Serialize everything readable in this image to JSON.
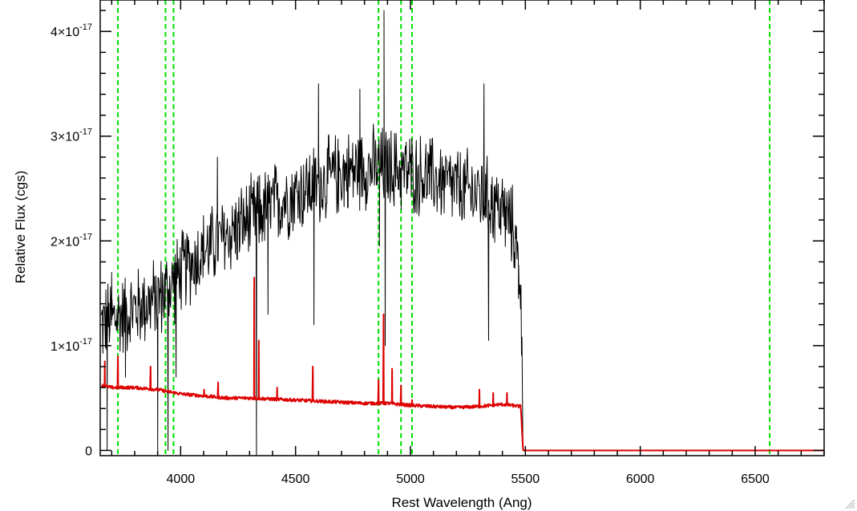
{
  "chart_data": {
    "type": "line",
    "xlabel": "Rest Wavelength (Ang)",
    "ylabel": "Relative Flux (cgs)",
    "xlim": [
      3650,
      6800
    ],
    "ylim": [
      -0.05,
      4.3
    ],
    "y_unit_exponent": "-17",
    "x_ticks": [
      4000,
      4500,
      5000,
      5500,
      6000,
      6500
    ],
    "x_tick_labels": [
      "4000",
      "4500",
      "5000",
      "5500",
      "6000",
      "6500"
    ],
    "y_ticks": [
      0,
      1,
      2,
      3,
      4
    ],
    "y_tick_labels": [
      {
        "mantissa": "0",
        "exp": ""
      },
      {
        "mantissa": "1×10",
        "exp": "-17"
      },
      {
        "mantissa": "2×10",
        "exp": "-17"
      },
      {
        "mantissa": "3×10",
        "exp": "-17"
      },
      {
        "mantissa": "4×10",
        "exp": "-17"
      }
    ],
    "grid": false,
    "legend": "none",
    "vertical_lines": {
      "color": "#00dd00",
      "style": "dashed",
      "x": [
        3727,
        3934,
        3969,
        4861,
        4959,
        5007,
        6563
      ]
    },
    "series": [
      {
        "color": "#000000",
        "style": "noisy",
        "points": [
          [
            3655,
            1.2
          ],
          [
            3700,
            1.25
          ],
          [
            3750,
            1.3
          ],
          [
            3800,
            1.35
          ],
          [
            3850,
            1.4
          ],
          [
            3900,
            1.45
          ],
          [
            3950,
            1.55
          ],
          [
            4000,
            1.7
          ],
          [
            4100,
            1.9
          ],
          [
            4200,
            2.05
          ],
          [
            4300,
            2.2
          ],
          [
            4400,
            2.35
          ],
          [
            4500,
            2.45
          ],
          [
            4600,
            2.55
          ],
          [
            4700,
            2.65
          ],
          [
            4800,
            2.7
          ],
          [
            4900,
            2.7
          ],
          [
            5000,
            2.65
          ],
          [
            5100,
            2.6
          ],
          [
            5200,
            2.5
          ],
          [
            5300,
            2.45
          ],
          [
            5400,
            2.3
          ],
          [
            5450,
            2.1
          ],
          [
            5480,
            1.6
          ],
          [
            5490,
            0
          ]
        ],
        "spikes": [
          [
            3700,
            1.7
          ],
          [
            3900,
            0.0
          ],
          [
            3945,
            0.0
          ],
          [
            3980,
            0.7
          ],
          [
            4160,
            2.8
          ],
          [
            4330,
            -0.05
          ],
          [
            4380,
            1.3
          ],
          [
            4580,
            1.2
          ],
          [
            4600,
            3.5
          ],
          [
            4780,
            3.45
          ],
          [
            4865,
            1.95
          ],
          [
            4885,
            4.2
          ],
          [
            4890,
            1.0
          ],
          [
            5320,
            3.5
          ],
          [
            5340,
            1.05
          ],
          [
            5470,
            1.45
          ],
          [
            3680,
            0.0
          ],
          [
            3760,
            0.7
          ]
        ]
      },
      {
        "color": "#dd0000",
        "style": "noisy",
        "points": [
          [
            3655,
            0.62
          ],
          [
            3700,
            0.6
          ],
          [
            3800,
            0.6
          ],
          [
            3900,
            0.58
          ],
          [
            4000,
            0.54
          ],
          [
            4100,
            0.52
          ],
          [
            4200,
            0.5
          ],
          [
            4300,
            0.5
          ],
          [
            4400,
            0.49
          ],
          [
            4500,
            0.48
          ],
          [
            4600,
            0.47
          ],
          [
            4700,
            0.46
          ],
          [
            4800,
            0.45
          ],
          [
            4900,
            0.45
          ],
          [
            5000,
            0.43
          ],
          [
            5100,
            0.42
          ],
          [
            5200,
            0.41
          ],
          [
            5300,
            0.42
          ],
          [
            5400,
            0.44
          ],
          [
            5480,
            0.42
          ],
          [
            5490,
            0.0
          ],
          [
            6800,
            0.0
          ]
        ],
        "spikes": [
          [
            3670,
            0.85
          ],
          [
            3727,
            0.9
          ],
          [
            3869,
            0.8
          ],
          [
            4102,
            0.58
          ],
          [
            4163,
            0.65
          ],
          [
            4320,
            1.65
          ],
          [
            4340,
            1.05
          ],
          [
            4420,
            0.6
          ],
          [
            4575,
            0.8
          ],
          [
            4861,
            0.67
          ],
          [
            4883,
            1.3
          ],
          [
            4920,
            0.78
          ],
          [
            4959,
            0.62
          ],
          [
            5007,
            0.48
          ],
          [
            5300,
            0.58
          ],
          [
            5360,
            0.55
          ],
          [
            5420,
            0.55
          ]
        ]
      }
    ]
  }
}
